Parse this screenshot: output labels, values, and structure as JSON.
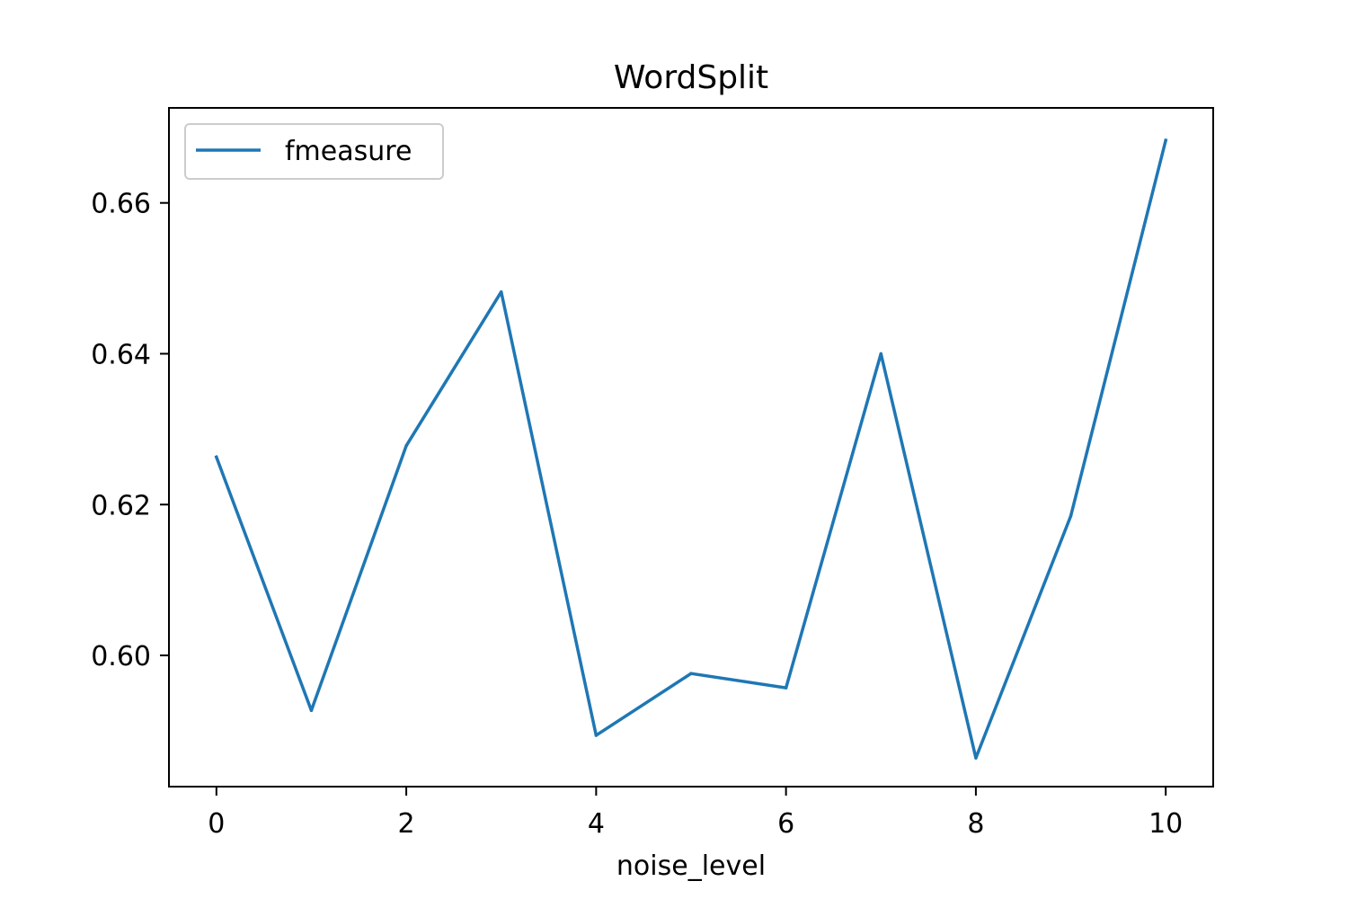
{
  "chart_data": {
    "type": "line",
    "title": "WordSplit",
    "xlabel": "noise_level",
    "ylabel": "",
    "x": [
      0,
      1,
      2,
      3,
      4,
      5,
      6,
      7,
      8,
      9,
      10
    ],
    "series": [
      {
        "name": "fmeasure",
        "color": "#1f77b4",
        "values": [
          0.6263,
          0.5927,
          0.6278,
          0.6482,
          0.5894,
          0.5976,
          0.5957,
          0.64,
          0.5864,
          0.6185,
          0.6683
        ]
      }
    ],
    "xlim": [
      -0.5,
      10.5
    ],
    "ylim": [
      0.5826,
      0.6726
    ],
    "xticks": [
      0,
      2,
      4,
      6,
      8,
      10
    ],
    "xtick_labels": [
      "0",
      "2",
      "4",
      "6",
      "8",
      "10"
    ],
    "yticks": [
      0.6,
      0.62,
      0.64,
      0.66
    ],
    "ytick_labels": [
      "0.60",
      "0.62",
      "0.64",
      "0.66"
    ],
    "grid": false,
    "legend": "upper left"
  }
}
